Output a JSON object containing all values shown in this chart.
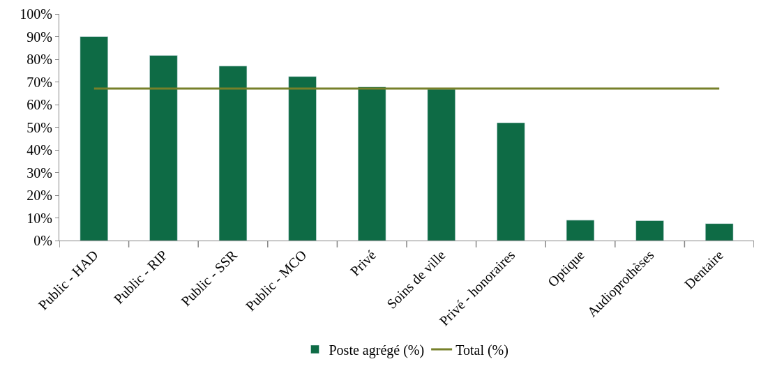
{
  "chart_data": {
    "type": "bar",
    "categories": [
      "Public - HAD",
      "Public - RIP",
      "Public - SSR",
      "Public - MCO",
      "Privé",
      "Soins de ville",
      "Privé - honoraires",
      "Optique",
      "Audioprothèses",
      "Dentaire"
    ],
    "series": [
      {
        "name": "Poste agrégé (%)",
        "color": "#0e6b45",
        "values": [
          90.0,
          81.7,
          77.0,
          72.4,
          67.8,
          66.8,
          52.0,
          9.0,
          8.8,
          7.5
        ]
      },
      {
        "name": "Total (%)",
        "type": "line",
        "color": "#77802a",
        "values": [
          67.1,
          67.1,
          67.1,
          67.1,
          67.1,
          67.1,
          67.1,
          67.1,
          67.1,
          67.1
        ]
      }
    ],
    "ylim": [
      0,
      100
    ],
    "yticks": [
      {
        "value": 0,
        "label": "0%"
      },
      {
        "value": 10,
        "label": "10%"
      },
      {
        "value": 20,
        "label": "20%"
      },
      {
        "value": 30,
        "label": "30%"
      },
      {
        "value": 40,
        "label": "40%"
      },
      {
        "value": 50,
        "label": "50%"
      },
      {
        "value": 60,
        "label": "60%"
      },
      {
        "value": 70,
        "label": "70%"
      },
      {
        "value": 80,
        "label": "80%"
      },
      {
        "value": 90,
        "label": "90%"
      },
      {
        "value": 100,
        "label": "100%"
      }
    ],
    "legend": "bottom"
  }
}
